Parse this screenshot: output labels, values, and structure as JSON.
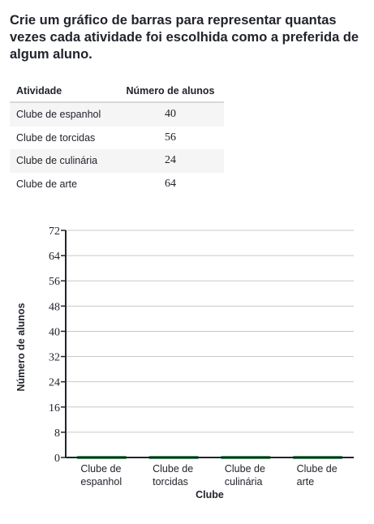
{
  "prompt": "Crie um gráfico de barras para representar quantas vezes cada atividade foi escolhida como a preferida de algum aluno.",
  "table": {
    "headers": [
      "Atividade",
      "Número de alunos"
    ],
    "rows": [
      {
        "activity": "Clube de espanhol",
        "count": "40"
      },
      {
        "activity": "Clube de torcidas",
        "count": "56"
      },
      {
        "activity": "Clube de culinária",
        "count": "24"
      },
      {
        "activity": "Clube de arte",
        "count": "64"
      }
    ]
  },
  "chart_data": {
    "type": "bar",
    "categories": [
      [
        "Clube de",
        "espanhol"
      ],
      [
        "Clube de",
        "torcidas"
      ],
      [
        "Clube de",
        "culinária"
      ],
      [
        "Clube de",
        "arte"
      ]
    ],
    "values": [
      0,
      0,
      0,
      0
    ],
    "yticks": [
      0,
      8,
      16,
      24,
      32,
      40,
      48,
      56,
      64,
      72
    ],
    "ylim": [
      0,
      72
    ],
    "xlabel": "Clube",
    "ylabel": "Número de alunos",
    "bar_color": "#1fab54",
    "grid": true
  }
}
